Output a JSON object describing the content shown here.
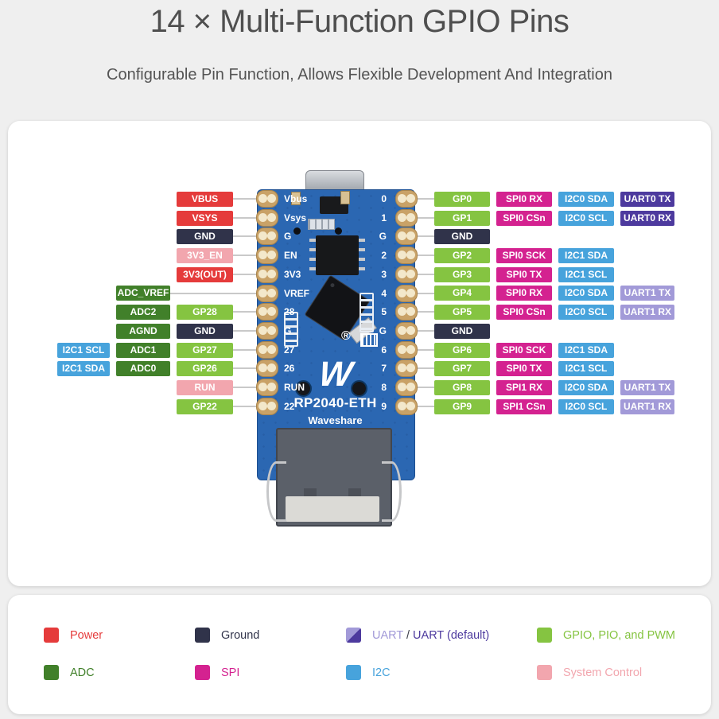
{
  "header": {
    "title": "14 × Multi-Function GPIO Pins",
    "subtitle": "Configurable Pin Function, Allows Flexible Development And Integration"
  },
  "colors": {
    "page_bg": "#efefef",
    "panel_bg": "#ffffff",
    "title_text": "#4f4f4f",
    "leader_line": "#c9c9c9",
    "board_blue": "#2b67b2",
    "types": {
      "power": "#e53b3b",
      "ground": "#30334a",
      "system": "#f2a6ae",
      "adc": "#41802a",
      "gpio": "#85c441",
      "i2c": "#47a3dc",
      "spi": "#d42290",
      "uart": "#a29ad8",
      "uart_default": "#4d3a9e",
      "dark": "#3a3d48"
    }
  },
  "board": {
    "model": "RP2040-ETH",
    "brand": "Waveshare",
    "logo_glyph": "W",
    "reg_mark": "®",
    "left_pad_labels": [
      "Vbus",
      "Vsys",
      "G",
      "EN",
      "3V3",
      "VREF",
      "28",
      "G",
      "27",
      "26",
      "RUN",
      "22"
    ],
    "right_pad_labels": [
      "0",
      "1",
      "G",
      "2",
      "3",
      "4",
      "5",
      "G",
      "6",
      "7",
      "8",
      "9"
    ]
  },
  "pinout": {
    "left_rows": [
      {
        "boxes": [
          {
            "label": "VBUS",
            "type": "power",
            "col": 2
          }
        ]
      },
      {
        "boxes": [
          {
            "label": "VSYS",
            "type": "power",
            "col": 2
          }
        ]
      },
      {
        "boxes": [
          {
            "label": "GND",
            "type": "ground",
            "col": 2
          }
        ]
      },
      {
        "boxes": [
          {
            "label": "3V3_EN",
            "type": "system",
            "col": 2
          }
        ]
      },
      {
        "boxes": [
          {
            "label": "3V3(OUT)",
            "type": "power",
            "col": 2
          }
        ]
      },
      {
        "boxes": [
          {
            "label": "ADC_VREF",
            "type": "adc",
            "col": 1
          }
        ]
      },
      {
        "boxes": [
          {
            "label": "ADC2",
            "type": "adc",
            "col": 1
          },
          {
            "label": "GP28",
            "type": "gpio",
            "col": 2
          }
        ]
      },
      {
        "boxes": [
          {
            "label": "AGND",
            "type": "adc",
            "col": 1
          },
          {
            "label": "GND",
            "type": "ground",
            "col": 2
          }
        ]
      },
      {
        "boxes": [
          {
            "label": "I2C1 SCL",
            "type": "i2c",
            "col": 0
          },
          {
            "label": "ADC1",
            "type": "adc",
            "col": 1
          },
          {
            "label": "GP27",
            "type": "gpio",
            "col": 2
          }
        ]
      },
      {
        "boxes": [
          {
            "label": "I2C1 SDA",
            "type": "i2c",
            "col": 0
          },
          {
            "label": "ADC0",
            "type": "adc",
            "col": 1
          },
          {
            "label": "GP26",
            "type": "gpio",
            "col": 2
          }
        ]
      },
      {
        "boxes": [
          {
            "label": "RUN",
            "type": "system",
            "col": 2
          }
        ]
      },
      {
        "boxes": [
          {
            "label": "GP22",
            "type": "gpio",
            "col": 2
          }
        ]
      }
    ],
    "right_rows": [
      {
        "boxes": [
          {
            "label": "GP0",
            "type": "gpio",
            "col": 0
          },
          {
            "label": "SPI0 RX",
            "type": "spi",
            "col": 1
          },
          {
            "label": "I2C0 SDA",
            "type": "i2c",
            "col": 2
          },
          {
            "label": "UART0 TX",
            "type": "uart_default",
            "col": 3
          }
        ]
      },
      {
        "boxes": [
          {
            "label": "GP1",
            "type": "gpio",
            "col": 0
          },
          {
            "label": "SPI0 CSn",
            "type": "spi",
            "col": 1
          },
          {
            "label": "I2C0 SCL",
            "type": "i2c",
            "col": 2
          },
          {
            "label": "UART0 RX",
            "type": "uart_default",
            "col": 3
          }
        ]
      },
      {
        "boxes": [
          {
            "label": "GND",
            "type": "ground",
            "col": 0
          }
        ]
      },
      {
        "boxes": [
          {
            "label": "GP2",
            "type": "gpio",
            "col": 0
          },
          {
            "label": "SPI0 SCK",
            "type": "spi",
            "col": 1
          },
          {
            "label": "I2C1 SDA",
            "type": "i2c",
            "col": 2
          }
        ]
      },
      {
        "boxes": [
          {
            "label": "GP3",
            "type": "gpio",
            "col": 0
          },
          {
            "label": "SPI0 TX",
            "type": "spi",
            "col": 1
          },
          {
            "label": "I2C1 SCL",
            "type": "i2c",
            "col": 2
          }
        ]
      },
      {
        "boxes": [
          {
            "label": "GP4",
            "type": "gpio",
            "col": 0
          },
          {
            "label": "SPI0 RX",
            "type": "spi",
            "col": 1
          },
          {
            "label": "I2C0 SDA",
            "type": "i2c",
            "col": 2
          },
          {
            "label": "UART1 TX",
            "type": "uart",
            "col": 3
          }
        ]
      },
      {
        "boxes": [
          {
            "label": "GP5",
            "type": "gpio",
            "col": 0
          },
          {
            "label": "SPI0 CSn",
            "type": "spi",
            "col": 1
          },
          {
            "label": "I2C0 SCL",
            "type": "i2c",
            "col": 2
          },
          {
            "label": "UART1 RX",
            "type": "uart",
            "col": 3
          }
        ]
      },
      {
        "boxes": [
          {
            "label": "GND",
            "type": "ground",
            "col": 0
          }
        ]
      },
      {
        "boxes": [
          {
            "label": "GP6",
            "type": "gpio",
            "col": 0
          },
          {
            "label": "SPI0 SCK",
            "type": "spi",
            "col": 1
          },
          {
            "label": "I2C1 SDA",
            "type": "i2c",
            "col": 2
          }
        ]
      },
      {
        "boxes": [
          {
            "label": "GP7",
            "type": "gpio",
            "col": 0
          },
          {
            "label": "SPI0 TX",
            "type": "spi",
            "col": 1
          },
          {
            "label": "I2C1 SCL",
            "type": "i2c",
            "col": 2
          }
        ]
      },
      {
        "boxes": [
          {
            "label": "GP8",
            "type": "gpio",
            "col": 0
          },
          {
            "label": "SPI1 RX",
            "type": "spi",
            "col": 1
          },
          {
            "label": "I2C0 SDA",
            "type": "i2c",
            "col": 2
          },
          {
            "label": "UART1 TX",
            "type": "uart",
            "col": 3
          }
        ]
      },
      {
        "boxes": [
          {
            "label": "GP9",
            "type": "gpio",
            "col": 0
          },
          {
            "label": "SPI1 CSn",
            "type": "spi",
            "col": 1
          },
          {
            "label": "I2C0 SCL",
            "type": "i2c",
            "col": 2
          },
          {
            "label": "UART1 RX",
            "type": "uart",
            "col": 3
          }
        ]
      }
    ]
  },
  "legend": {
    "rows": [
      [
        {
          "label": "Power",
          "type": "power"
        },
        {
          "label": "Ground",
          "type": "ground"
        },
        {
          "type": "uart_split",
          "parts": [
            {
              "text": "UART ",
              "cls": "uart"
            },
            {
              "text": "/ ",
              "cls": "dark"
            },
            {
              "text": "UART (default)",
              "cls": "uart_default"
            }
          ]
        },
        {
          "label": "GPIO, PIO, and PWM",
          "type": "gpio"
        }
      ],
      [
        {
          "label": "ADC",
          "type": "adc"
        },
        {
          "label": "SPI",
          "type": "spi"
        },
        {
          "label": "I2C",
          "type": "i2c"
        },
        {
          "label": "System Control",
          "type": "system"
        }
      ]
    ]
  }
}
